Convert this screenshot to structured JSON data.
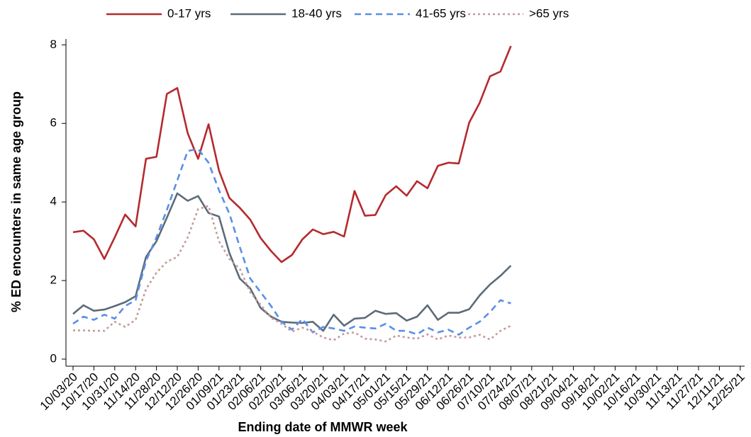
{
  "chart_data": {
    "type": "line",
    "x_label": "Ending date of MMWR week",
    "y_label": "% ED encounters in same age group",
    "categories": [
      "10/03/20",
      null,
      "10/17/20",
      null,
      "10/31/20",
      null,
      "11/14/20",
      null,
      "11/28/20",
      null,
      "12/12/20",
      null,
      "12/26/20",
      null,
      "01/09/21",
      null,
      "01/23/21",
      null,
      "02/06/21",
      null,
      "02/20/21",
      null,
      "03/06/21",
      null,
      "03/20/21",
      null,
      "04/03/21",
      null,
      "04/17/21",
      null,
      "05/01/21",
      null,
      "05/15/21",
      null,
      "05/29/21",
      null,
      "06/12/21",
      null,
      "06/26/21",
      null,
      "07/10/21",
      null,
      "07/24/21",
      null,
      "08/07/21",
      null,
      "08/21/21",
      null,
      "09/04/21",
      null,
      "09/18/21",
      null,
      "10/02/21",
      null,
      "10/16/21",
      null,
      "10/30/21",
      null,
      "11/13/21",
      null,
      "11/27/21",
      null,
      "12/11/21",
      null,
      "12/25/21"
    ],
    "series": [
      {
        "name": "0-17 yrs",
        "color": "#b52a2e",
        "dash": "solid",
        "values": [
          3.23,
          3.27,
          3.05,
          2.55,
          3.1,
          3.68,
          3.38,
          5.1,
          5.15,
          6.75,
          6.9,
          5.75,
          5.1,
          5.98,
          4.8,
          4.1,
          3.85,
          3.55,
          3.08,
          2.75,
          2.47,
          2.65,
          3.05,
          3.3,
          3.18,
          3.24,
          3.12,
          4.28,
          3.65,
          3.67,
          4.18,
          4.4,
          4.16,
          4.53,
          4.35,
          4.92,
          5.0,
          4.98,
          6.02,
          6.52,
          7.2,
          7.32,
          7.97,
          null,
          null,
          null,
          null,
          null,
          null,
          null,
          null,
          null,
          null,
          null,
          null,
          null,
          null,
          null,
          null,
          null,
          null,
          null,
          null,
          null,
          null
        ]
      },
      {
        "name": "18-40 yrs",
        "color": "#5d6b78",
        "dash": "solid",
        "values": [
          1.15,
          1.37,
          1.23,
          1.26,
          1.35,
          1.45,
          1.6,
          2.6,
          3.0,
          3.6,
          4.22,
          4.03,
          4.15,
          3.72,
          3.63,
          2.7,
          2.05,
          1.8,
          1.3,
          1.08,
          0.95,
          0.93,
          0.92,
          0.95,
          0.72,
          1.13,
          0.85,
          1.03,
          1.05,
          1.23,
          1.15,
          1.17,
          0.98,
          1.08,
          1.37,
          1.0,
          1.18,
          1.18,
          1.27,
          1.62,
          1.9,
          2.12,
          2.38,
          null,
          null,
          null,
          null,
          null,
          null,
          null,
          null,
          null,
          null,
          null,
          null,
          null,
          null,
          null,
          null,
          null,
          null,
          null,
          null,
          null,
          null
        ]
      },
      {
        "name": "41-65 yrs",
        "color": "#5b8ee6",
        "dash": "dashed",
        "values": [
          0.9,
          1.08,
          1.0,
          1.13,
          1.03,
          1.35,
          1.5,
          2.5,
          3.1,
          3.8,
          4.55,
          5.3,
          5.35,
          5.0,
          4.3,
          3.7,
          2.85,
          2.05,
          1.7,
          1.35,
          0.95,
          0.75,
          1.02,
          0.68,
          0.82,
          0.78,
          0.72,
          0.83,
          0.8,
          0.78,
          0.9,
          0.72,
          0.72,
          0.63,
          0.8,
          0.68,
          0.75,
          0.62,
          0.8,
          0.95,
          1.2,
          1.5,
          1.42,
          null,
          null,
          null,
          null,
          null,
          null,
          null,
          null,
          null,
          null,
          null,
          null,
          null,
          null,
          null,
          null,
          null,
          null,
          null,
          null,
          null,
          null
        ]
      },
      {
        "name": ">65 yrs",
        "color": "#c49a9a",
        "dash": "dotted",
        "values": [
          0.73,
          0.73,
          0.72,
          0.72,
          0.95,
          0.82,
          1.0,
          1.78,
          2.2,
          2.48,
          2.6,
          3.1,
          3.82,
          3.9,
          3.0,
          2.55,
          2.3,
          1.7,
          1.38,
          1.05,
          0.9,
          0.7,
          0.8,
          0.7,
          0.55,
          0.48,
          0.65,
          0.68,
          0.52,
          0.5,
          0.45,
          0.6,
          0.55,
          0.52,
          0.63,
          0.5,
          0.6,
          0.55,
          0.55,
          0.62,
          0.5,
          0.72,
          0.85,
          null,
          null,
          null,
          null,
          null,
          null,
          null,
          null,
          null,
          null,
          null,
          null,
          null,
          null,
          null,
          null,
          null,
          null,
          null,
          null,
          null,
          null
        ]
      }
    ],
    "ylim": [
      -0.18,
      8.15
    ],
    "yticks": [
      0,
      2,
      4,
      6,
      8
    ]
  }
}
